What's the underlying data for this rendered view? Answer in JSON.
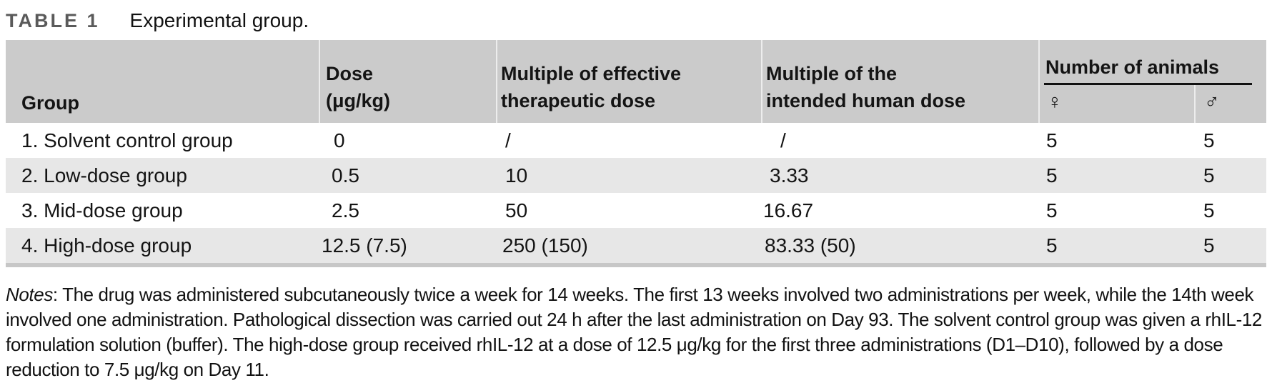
{
  "title": {
    "label": "TABLE 1",
    "caption": "Experimental group."
  },
  "table": {
    "columns": {
      "group": "Group",
      "dose_line1": "Dose",
      "dose_line2": "(μg/kg)",
      "moe_line1": "Multiple of effective",
      "moe_line2": "therapeutic dose",
      "moh_line1": "Multiple of the",
      "moh_line2": "intended human dose",
      "animals": "Number of animals",
      "female_symbol": "♀",
      "male_symbol": "♂"
    },
    "rows": [
      {
        "group": "1. Solvent control group",
        "dose": "0",
        "moe": "/",
        "moh": "/",
        "female": "5",
        "male": "5"
      },
      {
        "group": "2. Low-dose group",
        "dose": "0.5",
        "moe": "10",
        "moh": "3.33",
        "female": "5",
        "male": "5"
      },
      {
        "group": "3. Mid-dose group",
        "dose": "2.5",
        "moe": "50",
        "moh": "16.67",
        "female": "5",
        "male": "5"
      },
      {
        "group": "4. High-dose group",
        "dose": "12.5 (7.5)",
        "moe": "250 (150)",
        "moh": "83.33 (50)",
        "female": "5",
        "male": "5"
      }
    ]
  },
  "notes": {
    "label": "Notes",
    "text": ": The drug was administered subcutaneously twice a week for 14 weeks. The first 13 weeks involved two administrations per week, while the 14th week involved one administration. Pathological dissection was carried out 24 h after the last administration on Day 93. The solvent control group was given a rhIL-12 formulation solution (buffer). The high-dose group received rhIL-12 at a dose of 12.5 μg/kg for the first three administrations (D1–D10), followed by a dose reduction to 7.5 μg/kg on Day 11."
  },
  "colors": {
    "header_band": "#cbcbcb",
    "row_stripe": "#e7e7e7",
    "bottom_border": "#c7c7c7",
    "label_gray": "#5a5a5a",
    "rule_black": "#111111"
  }
}
